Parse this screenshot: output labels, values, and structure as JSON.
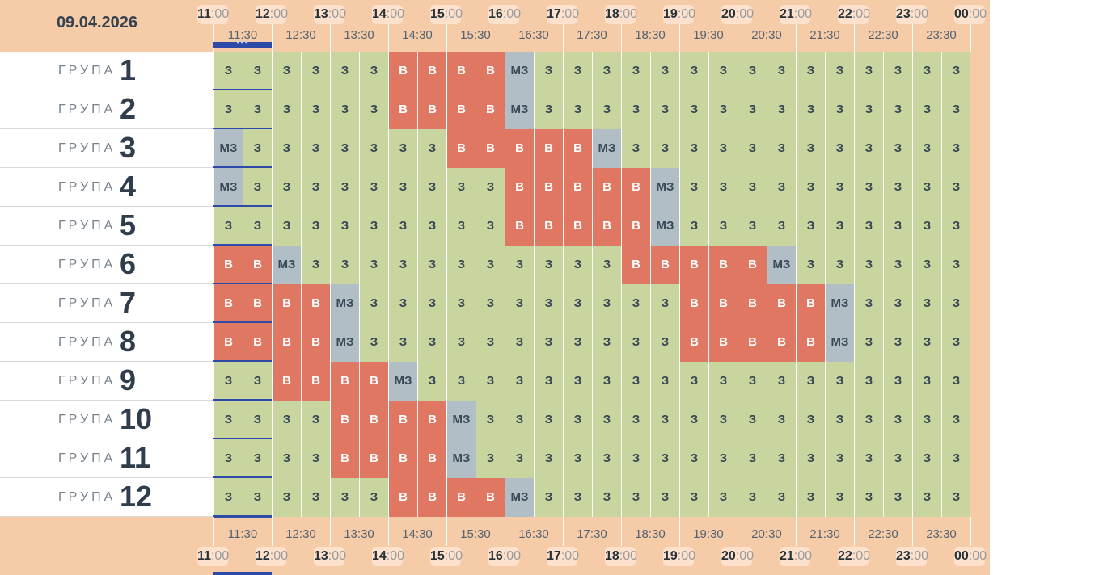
{
  "date": "09.04.2026",
  "hour_labels": [
    {
      "h": "11",
      "m": ":00"
    },
    {
      "h": "12",
      "m": ":00"
    },
    {
      "h": "13",
      "m": ":00"
    },
    {
      "h": "14",
      "m": ":00"
    },
    {
      "h": "15",
      "m": ":00"
    },
    {
      "h": "16",
      "m": ":00"
    },
    {
      "h": "17",
      "m": ":00"
    },
    {
      "h": "18",
      "m": ":00"
    },
    {
      "h": "19",
      "m": ":00"
    },
    {
      "h": "20",
      "m": ":00"
    },
    {
      "h": "21",
      "m": ":00"
    },
    {
      "h": "22",
      "m": ":00"
    },
    {
      "h": "23",
      "m": ":00"
    },
    {
      "h": "00",
      "m": ":00"
    }
  ],
  "half_labels": [
    "11:30",
    "12:30",
    "13:30",
    "14:30",
    "15:30",
    "16:30",
    "17:30",
    "18:30",
    "19:30",
    "20:30",
    "21:30",
    "22:30",
    "23:30"
  ],
  "group_word": "ГРУПА",
  "status_text": {
    "z": "З",
    "v": "В",
    "m": "МЗ"
  },
  "colors": {
    "z": "#c8d59f",
    "v": "#e07762",
    "m": "#b1bec5",
    "header": "#f6cba8",
    "marker": "#2d4aa8"
  },
  "groups": [
    {
      "number": "1",
      "slots": "zzzzzzvvvvmzzzzzzzzzzzzzzz"
    },
    {
      "number": "2",
      "slots": "zzzzzzvvvvmzzzzzzzzzzzzzzz"
    },
    {
      "number": "3",
      "slots": "mzzzzzzzvvvvvmzzzzzzzzzzzz"
    },
    {
      "number": "4",
      "slots": "mzzzzzzzzzvvvvvmzzzzzzzzzz"
    },
    {
      "number": "5",
      "slots": "zzzzzzzzzzvvvvvmzzzzzzzzzz"
    },
    {
      "number": "6",
      "slots": "vvmzzzzzzzzzzzvvvvvmzzzzzz"
    },
    {
      "number": "7",
      "slots": "vvvvmzzzzzzzzzzzvvvvvmzzzz"
    },
    {
      "number": "8",
      "slots": "vvvvmzzzzzzzzzzzvvvvvmzzzz"
    },
    {
      "number": "9",
      "slots": "zzvvvvmzzzzzzzzzzzzzzzzzzz"
    },
    {
      "number": "10",
      "slots": "zzzzvvvvmzzzzzzzzzzzzzzzzz"
    },
    {
      "number": "11",
      "slots": "zzzzvvvvmzzzzzzzzzzzzzzzzz"
    },
    {
      "number": "12",
      "slots": "zzzzzzvvvvmzzzzzzzzzzzzzzz"
    }
  ]
}
